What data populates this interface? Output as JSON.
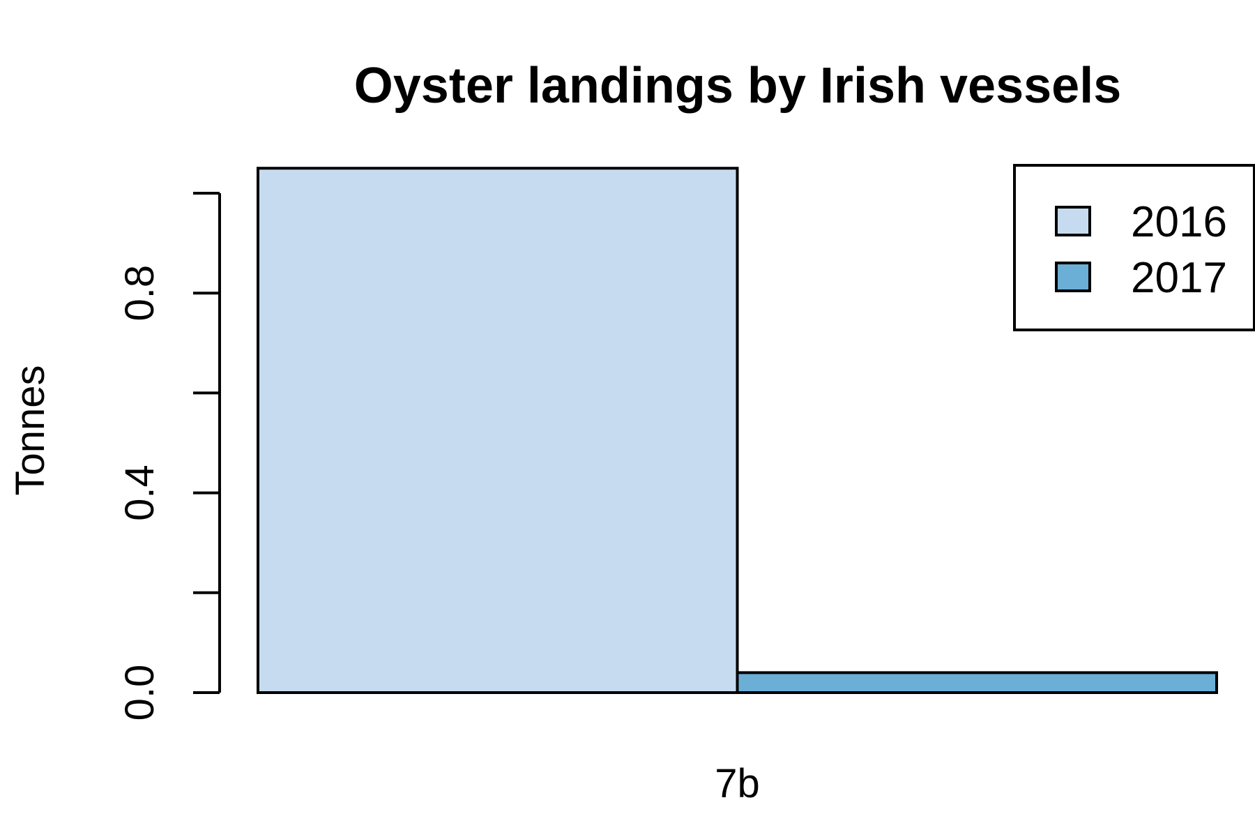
{
  "chart_data": {
    "type": "bar",
    "title": "Oyster landings by Irish vessels",
    "xlabel": "",
    "ylabel": "Tonnes",
    "categories": [
      "7b"
    ],
    "series": [
      {
        "name": "2016",
        "values": [
          1.05
        ],
        "color": "#C6DBEF"
      },
      {
        "name": "2017",
        "values": [
          0.04
        ],
        "color": "#6BAED6"
      }
    ],
    "ylim": [
      0,
      1.0
    ],
    "yticks": [
      0.0,
      0.2,
      0.4,
      0.6,
      0.8,
      1.0
    ],
    "ytick_labels": [
      "0.0",
      "",
      "0.4",
      "",
      "0.8",
      ""
    ],
    "grid": false,
    "legend_position": "top-right"
  }
}
